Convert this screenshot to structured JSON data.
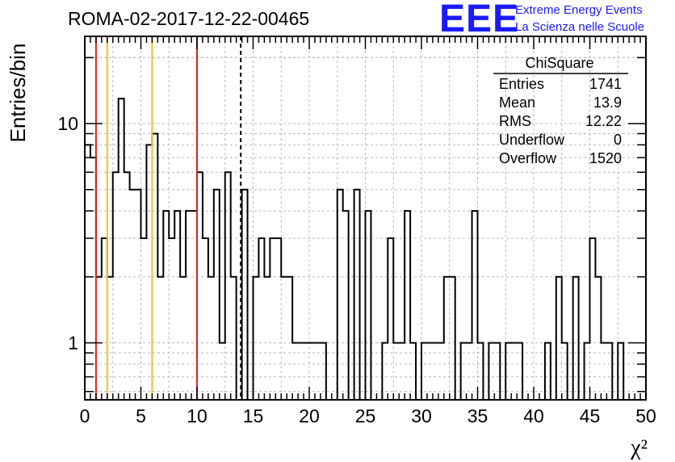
{
  "header": {
    "title": "ROMA-02-2017-12-22-00465",
    "logo_text": "EEE",
    "logo_line1": "Extreme Energy Events",
    "logo_line2": "La Scienza nelle Scuole",
    "logo_color": "#1a1aff"
  },
  "stats_box": {
    "title": "ChiSquare",
    "rows": [
      {
        "label": "Entries",
        "value": "1741"
      },
      {
        "label": "Mean",
        "value": "13.9"
      },
      {
        "label": "RMS",
        "value": "12.22"
      },
      {
        "label": "Underflow",
        "value": "0"
      },
      {
        "label": "Overflow",
        "value": "1520"
      }
    ]
  },
  "chart_data": {
    "type": "histogram",
    "title": "ROMA-02-2017-12-22-00465",
    "xlabel": "χ²",
    "ylabel": "Entries/bin",
    "xlim": [
      0,
      50
    ],
    "ylim": [
      0.55,
      25
    ],
    "yscale": "log",
    "grid": true,
    "bin_width": 0.5,
    "x_ticks": [
      "0",
      "5",
      "10",
      "15",
      "20",
      "25",
      "30",
      "35",
      "40",
      "45",
      "50"
    ],
    "y_ticks": [
      {
        "value": 1,
        "label": "1"
      },
      {
        "value": 10,
        "label": "10"
      }
    ],
    "counts": [
      8,
      7,
      2,
      3,
      2,
      6,
      13,
      6,
      5,
      5,
      3,
      8,
      9,
      2,
      4,
      3,
      4,
      2,
      4,
      4,
      6,
      3,
      2,
      5,
      1,
      6,
      2,
      0,
      5,
      0,
      2,
      3,
      2,
      3,
      3,
      2,
      2,
      1,
      1,
      1,
      1,
      1,
      1,
      0,
      0,
      5,
      4,
      0,
      5,
      0,
      4,
      0,
      0,
      1,
      3,
      1,
      1,
      4,
      1,
      0,
      1,
      1,
      1,
      1,
      2,
      2,
      0,
      1,
      1,
      4,
      1,
      0,
      1,
      1,
      0,
      1,
      1,
      1,
      0,
      0,
      0,
      0,
      1,
      0,
      2,
      1,
      0,
      2,
      0,
      1,
      3,
      2,
      1,
      1,
      0,
      1,
      0
    ],
    "vertical_lines": [
      {
        "x": 1,
        "color": "#e02020",
        "style": "solid"
      },
      {
        "x": 2,
        "color": "#f0c020",
        "style": "solid"
      },
      {
        "x": 6,
        "color": "#f0c020",
        "style": "solid"
      },
      {
        "x": 10,
        "color": "#e02020",
        "style": "solid"
      },
      {
        "x": 13.9,
        "color": "#000000",
        "style": "dashed"
      }
    ]
  }
}
